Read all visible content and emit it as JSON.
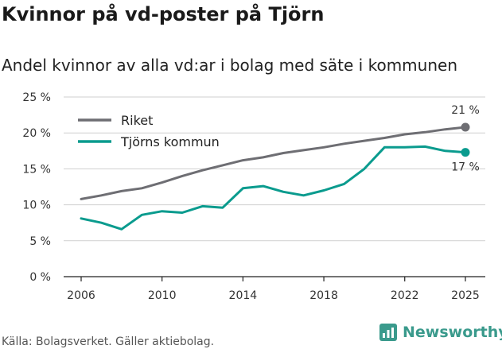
{
  "chart_data": {
    "type": "line",
    "title": "Kvinnor på vd-poster på Tjörn",
    "subtitle": "Andel kvinnor av alla vd:ar i bolag med säte i kommunen",
    "x": [
      2006,
      2007,
      2008,
      2009,
      2010,
      2011,
      2012,
      2013,
      2014,
      2015,
      2016,
      2017,
      2018,
      2019,
      2020,
      2021,
      2022,
      2023,
      2024,
      2025
    ],
    "xticks": [
      2006,
      2010,
      2014,
      2018,
      2022,
      2025
    ],
    "xtick_labels": [
      "2006",
      "2010",
      "2014",
      "2018",
      "2022",
      "2025"
    ],
    "yticks": [
      0,
      5,
      10,
      15,
      20,
      25
    ],
    "ytick_labels": [
      "0 %",
      "5 %",
      "10 %",
      "15 %",
      "20 %",
      "25 %"
    ],
    "ylim": [
      0,
      25
    ],
    "xlim": [
      2006,
      2025
    ],
    "series": [
      {
        "name": "Riket",
        "color": "#6e6e73",
        "values": [
          10.8,
          11.3,
          11.9,
          12.3,
          13.1,
          14.0,
          14.8,
          15.5,
          16.2,
          16.6,
          17.2,
          17.6,
          18.0,
          18.5,
          18.9,
          19.3,
          19.8,
          20.1,
          20.5,
          20.8
        ],
        "end_label": "21 %"
      },
      {
        "name": "Tjörns kommun",
        "color": "#0a9b8e",
        "values": [
          8.1,
          7.5,
          6.6,
          8.6,
          9.1,
          8.9,
          9.8,
          9.6,
          12.3,
          12.6,
          11.8,
          11.3,
          12.0,
          12.9,
          15.0,
          18.0,
          18.0,
          18.1,
          17.5,
          17.3
        ],
        "end_label": "17 %"
      }
    ],
    "legend_position": "top-left",
    "grid": "horizontal"
  },
  "footer": {
    "source": "Källa: Bolagsverket. Gäller aktiebolag.",
    "brand": "Newsworthy",
    "brand_icon": "newsworthy-logo-icon"
  },
  "colors": {
    "grid": "#cfcfcf",
    "axis": "#222222",
    "brand": "#3a9a8c"
  }
}
